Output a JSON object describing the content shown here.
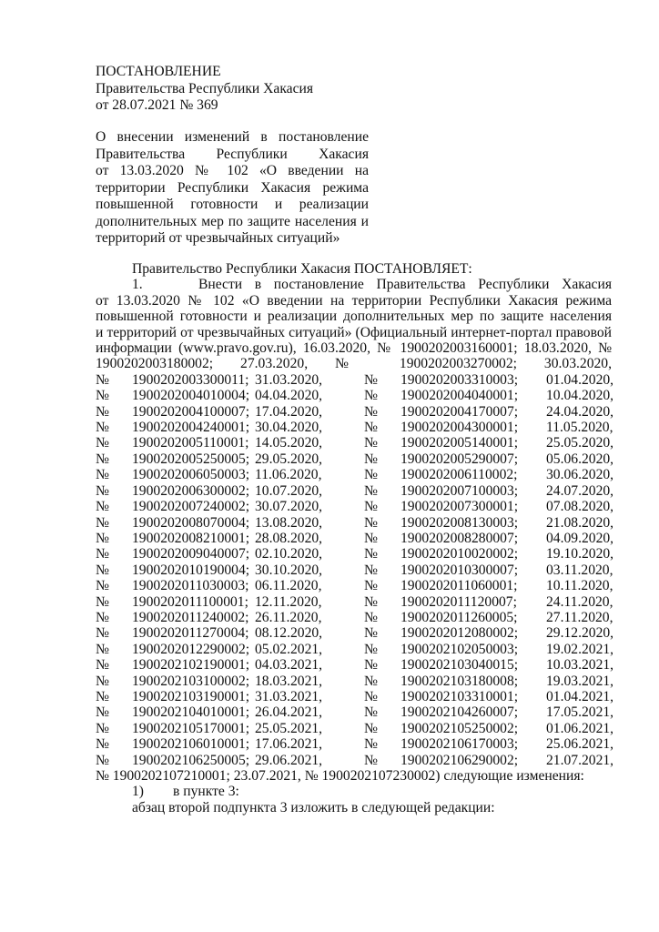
{
  "header": {
    "type": "ПОСТАНОВЛЕНИЕ",
    "issuer": "Правительства Республики Хакасия",
    "date_number": "от 28.07.2021 № 369"
  },
  "subject_lines": [
    "О внесении изменений в постановление",
    "Правительства Республики Хакасия",
    "от 13.03.2020 № 102 «О введении на",
    "территории Республики Хакасия режима",
    "повышенной готовности и реализации",
    "дополнительных мер по защите населения и",
    "территорий от чрезвычайных ситуаций»"
  ],
  "body": {
    "preamble": "Правительство Республики Хакасия ПОСТАНОВЛЯЕТ:",
    "item1_number": "1.",
    "item1_first": "Внести в постановление Правительства Республики Хакасия",
    "item1_lines": [
      "от 13.03.2020 № 102 «О введении на территории Республики Хакасия режима",
      "повышенной готовности и реализации дополнительных мер по защите населения",
      "и территорий от чрезвычайных ситуаций» (Официальный интернет-портал правовой",
      "информации (www.pravo.gov.ru), 16.03.2020, № 1900202003160001; 18.03.2020, №",
      "1900202003180002; 27.03.2020, № 1900202003270002; 30.03.2020,"
    ],
    "number_sign": "№",
    "refs": [
      [
        "1900202003300011;",
        "31.03.2020,",
        "1900202003310003;",
        "01.04.2020,"
      ],
      [
        "1900202004010004;",
        "04.04.2020,",
        "1900202004040001;",
        "10.04.2020,"
      ],
      [
        "1900202004100007;",
        "17.04.2020,",
        "1900202004170007;",
        "24.04.2020,"
      ],
      [
        "1900202004240001;",
        "30.04.2020,",
        "1900202004300001;",
        "11.05.2020,"
      ],
      [
        "1900202005110001;",
        "14.05.2020,",
        "1900202005140001;",
        "25.05.2020,"
      ],
      [
        "1900202005250005;",
        "29.05.2020,",
        "1900202005290007;",
        "05.06.2020,"
      ],
      [
        "1900202006050003;",
        "11.06.2020,",
        "1900202006110002;",
        "30.06.2020,"
      ],
      [
        "1900202006300002;",
        "10.07.2020,",
        "1900202007100003;",
        "24.07.2020,"
      ],
      [
        "1900202007240002;",
        "30.07.2020,",
        "1900202007300001;",
        "07.08.2020,"
      ],
      [
        "1900202008070004;",
        "13.08.2020,",
        "1900202008130003;",
        "21.08.2020,"
      ],
      [
        "1900202008210001;",
        "28.08.2020,",
        "1900202008280007;",
        "04.09.2020,"
      ],
      [
        "1900202009040007;",
        "02.10.2020,",
        "1900202010020002;",
        "19.10.2020,"
      ],
      [
        "1900202010190004;",
        "30.10.2020,",
        "1900202010300007;",
        "03.11.2020,"
      ],
      [
        "1900202011030003;",
        "06.11.2020,",
        "1900202011060001;",
        "10.11.2020,"
      ],
      [
        "1900202011100001;",
        "12.11.2020,",
        "1900202011120007;",
        "24.11.2020,"
      ],
      [
        "1900202011240002;",
        "26.11.2020,",
        "1900202011260005;",
        "27.11.2020,"
      ],
      [
        "1900202011270004;",
        "08.12.2020,",
        "1900202012080002;",
        "29.12.2020,"
      ],
      [
        "1900202012290002;",
        "05.02.2021,",
        "1900202102050003;",
        "19.02.2021,"
      ],
      [
        "1900202102190001;",
        "04.03.2021,",
        "1900202103040015;",
        "10.03.2021,"
      ],
      [
        "1900202103100002;",
        "18.03.2021,",
        "1900202103180008;",
        "19.03.2021,"
      ],
      [
        "1900202103190001;",
        "31.03.2021,",
        "1900202103310001;",
        "01.04.2021,"
      ],
      [
        "1900202104010001;",
        "26.04.2021,",
        "1900202104260007;",
        "17.05.2021,"
      ],
      [
        "1900202105170001;",
        "25.05.2021,",
        "1900202105250002;",
        "01.06.2021,"
      ],
      [
        "1900202106010001;",
        "17.06.2021,",
        "1900202106170003;",
        "25.06.2021,"
      ],
      [
        "1900202106250005;",
        "29.06.2021,",
        "1900202106290002;",
        "21.07.2021,"
      ]
    ],
    "refs_end": "№ 1900202107210001; 23.07.2021, № 1900202107230002) следующие изменения:",
    "sub1_number": "1)",
    "sub1_text": "в пункте 3:",
    "sub1_para": "абзац второй подпункта 3 изложить в следующей редакции:"
  }
}
